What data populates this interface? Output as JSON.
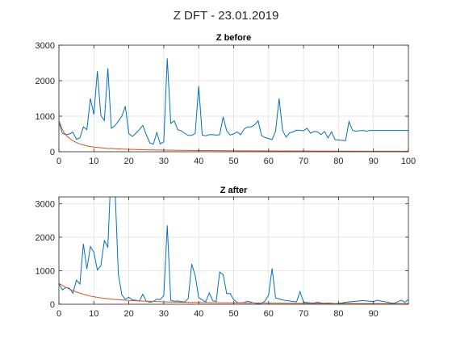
{
  "figure_title": "Z DFT - 23.01.2019",
  "chart_data": [
    {
      "type": "line",
      "title": "Z before",
      "xlabel": "",
      "ylabel": "",
      "xlim": [
        0,
        100
      ],
      "ylim": [
        0,
        3000
      ],
      "xticks": [
        0,
        10,
        20,
        30,
        40,
        50,
        60,
        70,
        80,
        90,
        100
      ],
      "yticks": [
        0,
        1000,
        2000,
        3000
      ],
      "grid": true,
      "colors": [
        "#0072BD",
        "#D95319"
      ],
      "series": [
        {
          "x": [
            0,
            1,
            2,
            3,
            4,
            5,
            6,
            7,
            8,
            9,
            10,
            11,
            12,
            13,
            14,
            15,
            16,
            17,
            18,
            19,
            20,
            21,
            22,
            23,
            24,
            25,
            26,
            27,
            28,
            29,
            30,
            31,
            32,
            33,
            34,
            35,
            36,
            37,
            38,
            39,
            40,
            41,
            42,
            43,
            44,
            45,
            46,
            47,
            48,
            49,
            50,
            51,
            52,
            53,
            54,
            55,
            56,
            57,
            58,
            59,
            60,
            61,
            62,
            63,
            64,
            65,
            66,
            67,
            68,
            69,
            70,
            71,
            72,
            73,
            74,
            75,
            76,
            77,
            78,
            79,
            80,
            81,
            82,
            83,
            84,
            85,
            86,
            87,
            88,
            89,
            90,
            91,
            92,
            93,
            94,
            95,
            96,
            97,
            98,
            99,
            100
          ],
          "values": [
            820,
            520,
            480,
            500,
            550,
            350,
            390,
            700,
            620,
            1500,
            1050,
            2270,
            1020,
            880,
            2350,
            660,
            730,
            860,
            1000,
            1280,
            510,
            430,
            520,
            620,
            740,
            480,
            250,
            210,
            540,
            220,
            280,
            2630,
            800,
            870,
            620,
            590,
            520,
            460,
            460,
            520,
            1850,
            470,
            450,
            480,
            480,
            470,
            480,
            980,
            590,
            470,
            500,
            560,
            480,
            640,
            700,
            700,
            760,
            870,
            450,
            400,
            370,
            340,
            580,
            1500,
            600,
            410,
            530,
            560,
            610,
            600,
            590,
            660,
            520,
            570,
            560,
            480,
            570,
            390,
            560,
            340,
            330,
            320,
            310,
            850,
            600,
            580,
            590,
            600,
            580,
            600,
            600,
            600,
            600,
            600,
            600,
            600,
            600,
            600,
            600,
            600,
            600
          ],
          "alt_note": ""
        },
        {
          "x": [
            0,
            1,
            2,
            3,
            4,
            5,
            6,
            7,
            8,
            9,
            10,
            12,
            14,
            16,
            18,
            20,
            25,
            30,
            35,
            40,
            45,
            50,
            60,
            70,
            80,
            90,
            100
          ],
          "values": [
            880,
            620,
            470,
            380,
            310,
            260,
            220,
            190,
            165,
            145,
            130,
            110,
            95,
            85,
            75,
            68,
            55,
            46,
            40,
            35,
            31,
            28,
            24,
            20,
            17,
            15,
            13
          ]
        }
      ]
    },
    {
      "type": "line",
      "title": "Z after",
      "xlabel": "",
      "ylabel": "",
      "xlim": [
        0,
        100
      ],
      "ylim": [
        0,
        3200
      ],
      "xticks": [
        0,
        10,
        20,
        30,
        40,
        50,
        60,
        70,
        80,
        90
      ],
      "yticks": [
        0,
        1000,
        2000,
        3000
      ],
      "grid": true,
      "colors": [
        "#0072BD",
        "#D95319"
      ],
      "series": [
        {
          "x": [
            0,
            1,
            2,
            3,
            4,
            5,
            6,
            7,
            8,
            9,
            10,
            11,
            12,
            13,
            14,
            15,
            16,
            17,
            18,
            19,
            20,
            21,
            22,
            23,
            24,
            25,
            26,
            27,
            28,
            29,
            30,
            31,
            32,
            33,
            34,
            35,
            36,
            37,
            38,
            39,
            40,
            41,
            42,
            43,
            44,
            45,
            46,
            47,
            48,
            49,
            50,
            51,
            52,
            53,
            54,
            55,
            56,
            57,
            58,
            59,
            60,
            61,
            62,
            63,
            64,
            65,
            66,
            67,
            68,
            69,
            70,
            71,
            72,
            73,
            74,
            75,
            76,
            77,
            78,
            79,
            80,
            81,
            82,
            83,
            84,
            85,
            86,
            87,
            88,
            89,
            90,
            91,
            92,
            93,
            94,
            95,
            96,
            97,
            98,
            99,
            100
          ],
          "values": [
            620,
            430,
            500,
            480,
            330,
            720,
            600,
            1800,
            1050,
            1720,
            1550,
            1020,
            1150,
            1900,
            1700,
            4200,
            3600,
            900,
            280,
            150,
            210,
            130,
            120,
            90,
            300,
            90,
            60,
            80,
            150,
            140,
            260,
            2350,
            120,
            90,
            100,
            80,
            70,
            170,
            1200,
            850,
            200,
            130,
            70,
            340,
            110,
            80,
            960,
            880,
            320,
            320,
            140,
            50,
            40,
            50,
            90,
            60,
            30,
            20,
            30,
            100,
            280,
            1070,
            190,
            160,
            130,
            110,
            100,
            80,
            70,
            380,
            60,
            50,
            40,
            40,
            60,
            40,
            30,
            40,
            30,
            20,
            30,
            40,
            60,
            70,
            80,
            90,
            100,
            110,
            100,
            90,
            80,
            120,
            100,
            80,
            60,
            40,
            30,
            80,
            120,
            60,
            140
          ],
          "alt_note": ""
        },
        {
          "x": [
            0,
            1,
            2,
            3,
            4,
            5,
            6,
            7,
            8,
            9,
            10,
            12,
            14,
            16,
            18,
            20,
            25,
            30,
            35,
            40,
            45,
            50,
            60,
            70,
            80,
            90,
            100
          ],
          "values": [
            620,
            560,
            500,
            450,
            410,
            370,
            330,
            300,
            270,
            245,
            225,
            190,
            165,
            145,
            130,
            115,
            90,
            72,
            60,
            52,
            46,
            41,
            34,
            28,
            24,
            21,
            19
          ]
        }
      ]
    }
  ]
}
